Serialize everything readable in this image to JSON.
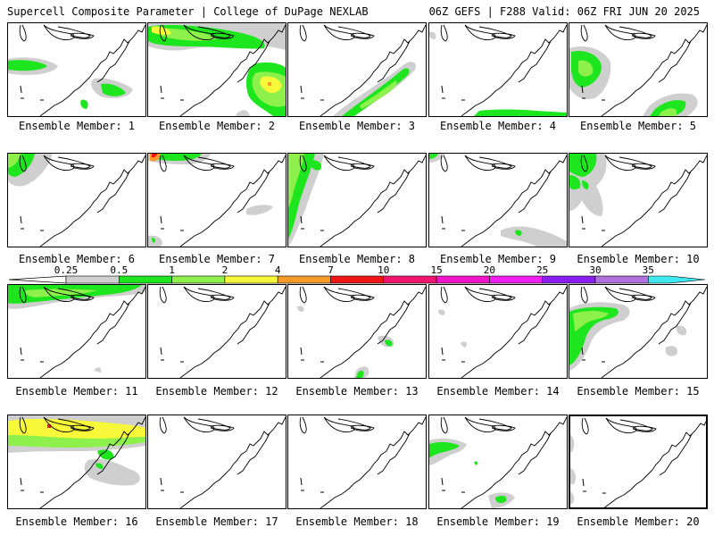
{
  "header": {
    "left": "Supercell Composite Parameter | College of DuPage NEXLAB",
    "right": "06Z GEFS | F288 Valid: 06Z FRI JUN 20 2025"
  },
  "colors": {
    "gray": "#cfcfcf",
    "green": "#1ee61e",
    "lightgreen": "#8ef04a",
    "yellow": "#f8f83a",
    "orange": "#f89a2a",
    "red": "#f01616"
  },
  "colorbar": {
    "labels": [
      "0.25",
      "0.5",
      "1",
      "2",
      "4",
      "7",
      "10",
      "15",
      "20",
      "25",
      "30",
      "35"
    ],
    "bin_colors": [
      "#d0d0d0",
      "#1ee61e",
      "#8ef04a",
      "#f8f83a",
      "#f89a2a",
      "#f01616",
      "#f01670",
      "#f016c8",
      "#f01ef0",
      "#8a1ef0",
      "#b070e0",
      "#40e8f0"
    ]
  },
  "panels": [
    {
      "caption": "Ensemble Member: 1",
      "selected": false
    },
    {
      "caption": "Ensemble Member: 2",
      "selected": false
    },
    {
      "caption": "Ensemble Member: 3",
      "selected": false
    },
    {
      "caption": "Ensemble Member: 4",
      "selected": false
    },
    {
      "caption": "Ensemble Member: 5",
      "selected": false
    },
    {
      "caption": "Ensemble Member: 6",
      "selected": false
    },
    {
      "caption": "Ensemble Member: 7",
      "selected": false
    },
    {
      "caption": "Ensemble Member: 8",
      "selected": false
    },
    {
      "caption": "Ensemble Member: 9",
      "selected": false
    },
    {
      "caption": "Ensemble Member: 10",
      "selected": false
    },
    {
      "caption": "Ensemble Member: 11",
      "selected": false
    },
    {
      "caption": "Ensemble Member: 12",
      "selected": false
    },
    {
      "caption": "Ensemble Member: 13",
      "selected": false
    },
    {
      "caption": "Ensemble Member: 14",
      "selected": false
    },
    {
      "caption": "Ensemble Member: 15",
      "selected": false
    },
    {
      "caption": "Ensemble Member: 16",
      "selected": false
    },
    {
      "caption": "Ensemble Member: 17",
      "selected": false
    },
    {
      "caption": "Ensemble Member: 18",
      "selected": false
    },
    {
      "caption": "Ensemble Member: 19",
      "selected": false
    },
    {
      "caption": "Ensemble Member: 20",
      "selected": true
    }
  ]
}
